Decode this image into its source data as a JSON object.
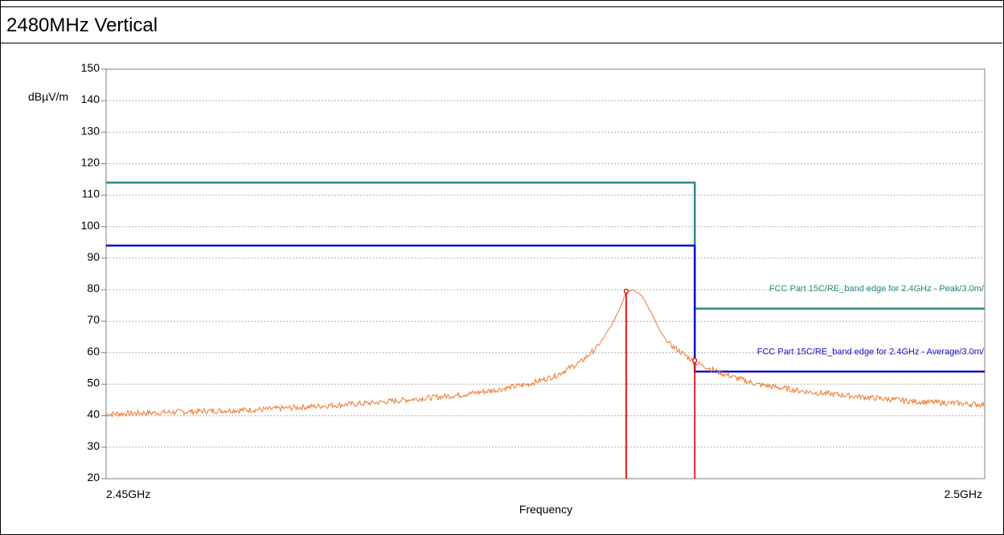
{
  "chart_data": {
    "type": "line",
    "title": "2480MHz Vertical",
    "ylabel": "dBµV/m",
    "xlabel": "Frequency",
    "ylim": [
      20,
      150
    ],
    "xlim": [
      2450,
      2500
    ],
    "y_ticks": [
      "20",
      "30",
      "40",
      "50",
      "60",
      "70",
      "80",
      "90",
      "100",
      "110",
      "120",
      "130",
      "140",
      "150"
    ],
    "x_tick_labels": [
      {
        "value": 2450,
        "label": "2.45GHz"
      },
      {
        "value": 2500,
        "label": "2.5GHz"
      }
    ],
    "grid": true,
    "series": [
      {
        "name": "FCC Part 15C/RE_band edge for 2.4GHz  - Peak/3.0m/",
        "color": "#2e8b84",
        "x": [
          2450,
          2483.5,
          2483.5,
          2500
        ],
        "values": [
          114,
          114,
          74,
          74
        ]
      },
      {
        "name": "FCC Part 15C/RE_band edge for 2.4GHz  - Average/3.0m/",
        "color": "#1010d0",
        "x": [
          2450,
          2483.5,
          2483.5,
          2500
        ],
        "values": [
          94,
          94,
          54,
          54
        ]
      },
      {
        "color": "#f07830",
        "x": [
          2450,
          2453,
          2456,
          2459,
          2462,
          2465,
          2468,
          2470,
          2472,
          2474,
          2475.5,
          2477,
          2478,
          2478.8,
          2479.3,
          2479.6,
          2480.0,
          2480.5,
          2481.0,
          2481.5,
          2482,
          2483,
          2483.5,
          2485,
          2487,
          2490,
          2493,
          2496,
          2498,
          2500
        ],
        "values": [
          40.5,
          41,
          41.5,
          42,
          43,
          44,
          45.5,
          46.5,
          48,
          50,
          52.5,
          57,
          62,
          69,
          75,
          79.5,
          80,
          78,
          73,
          67,
          63,
          59,
          57,
          53.5,
          50,
          47.5,
          46,
          44.5,
          44,
          43.5
        ]
      }
    ],
    "markers": [
      {
        "x": 2479.6,
        "y": 79.5,
        "color": "#e02020"
      },
      {
        "x": 2483.5,
        "y": 57.5,
        "color": "#e02020"
      }
    ],
    "annotations": [
      {
        "text": "FCC Part 15C/RE_band edge for 2.4GHz  - Peak/3.0m/",
        "x": 2500,
        "y": 79,
        "color": "#2e8b84"
      },
      {
        "text": "FCC Part 15C/RE_band edge for 2.4GHz  - Average/3.0m/",
        "x": 2500,
        "y": 59,
        "color": "#1010d0"
      }
    ]
  }
}
